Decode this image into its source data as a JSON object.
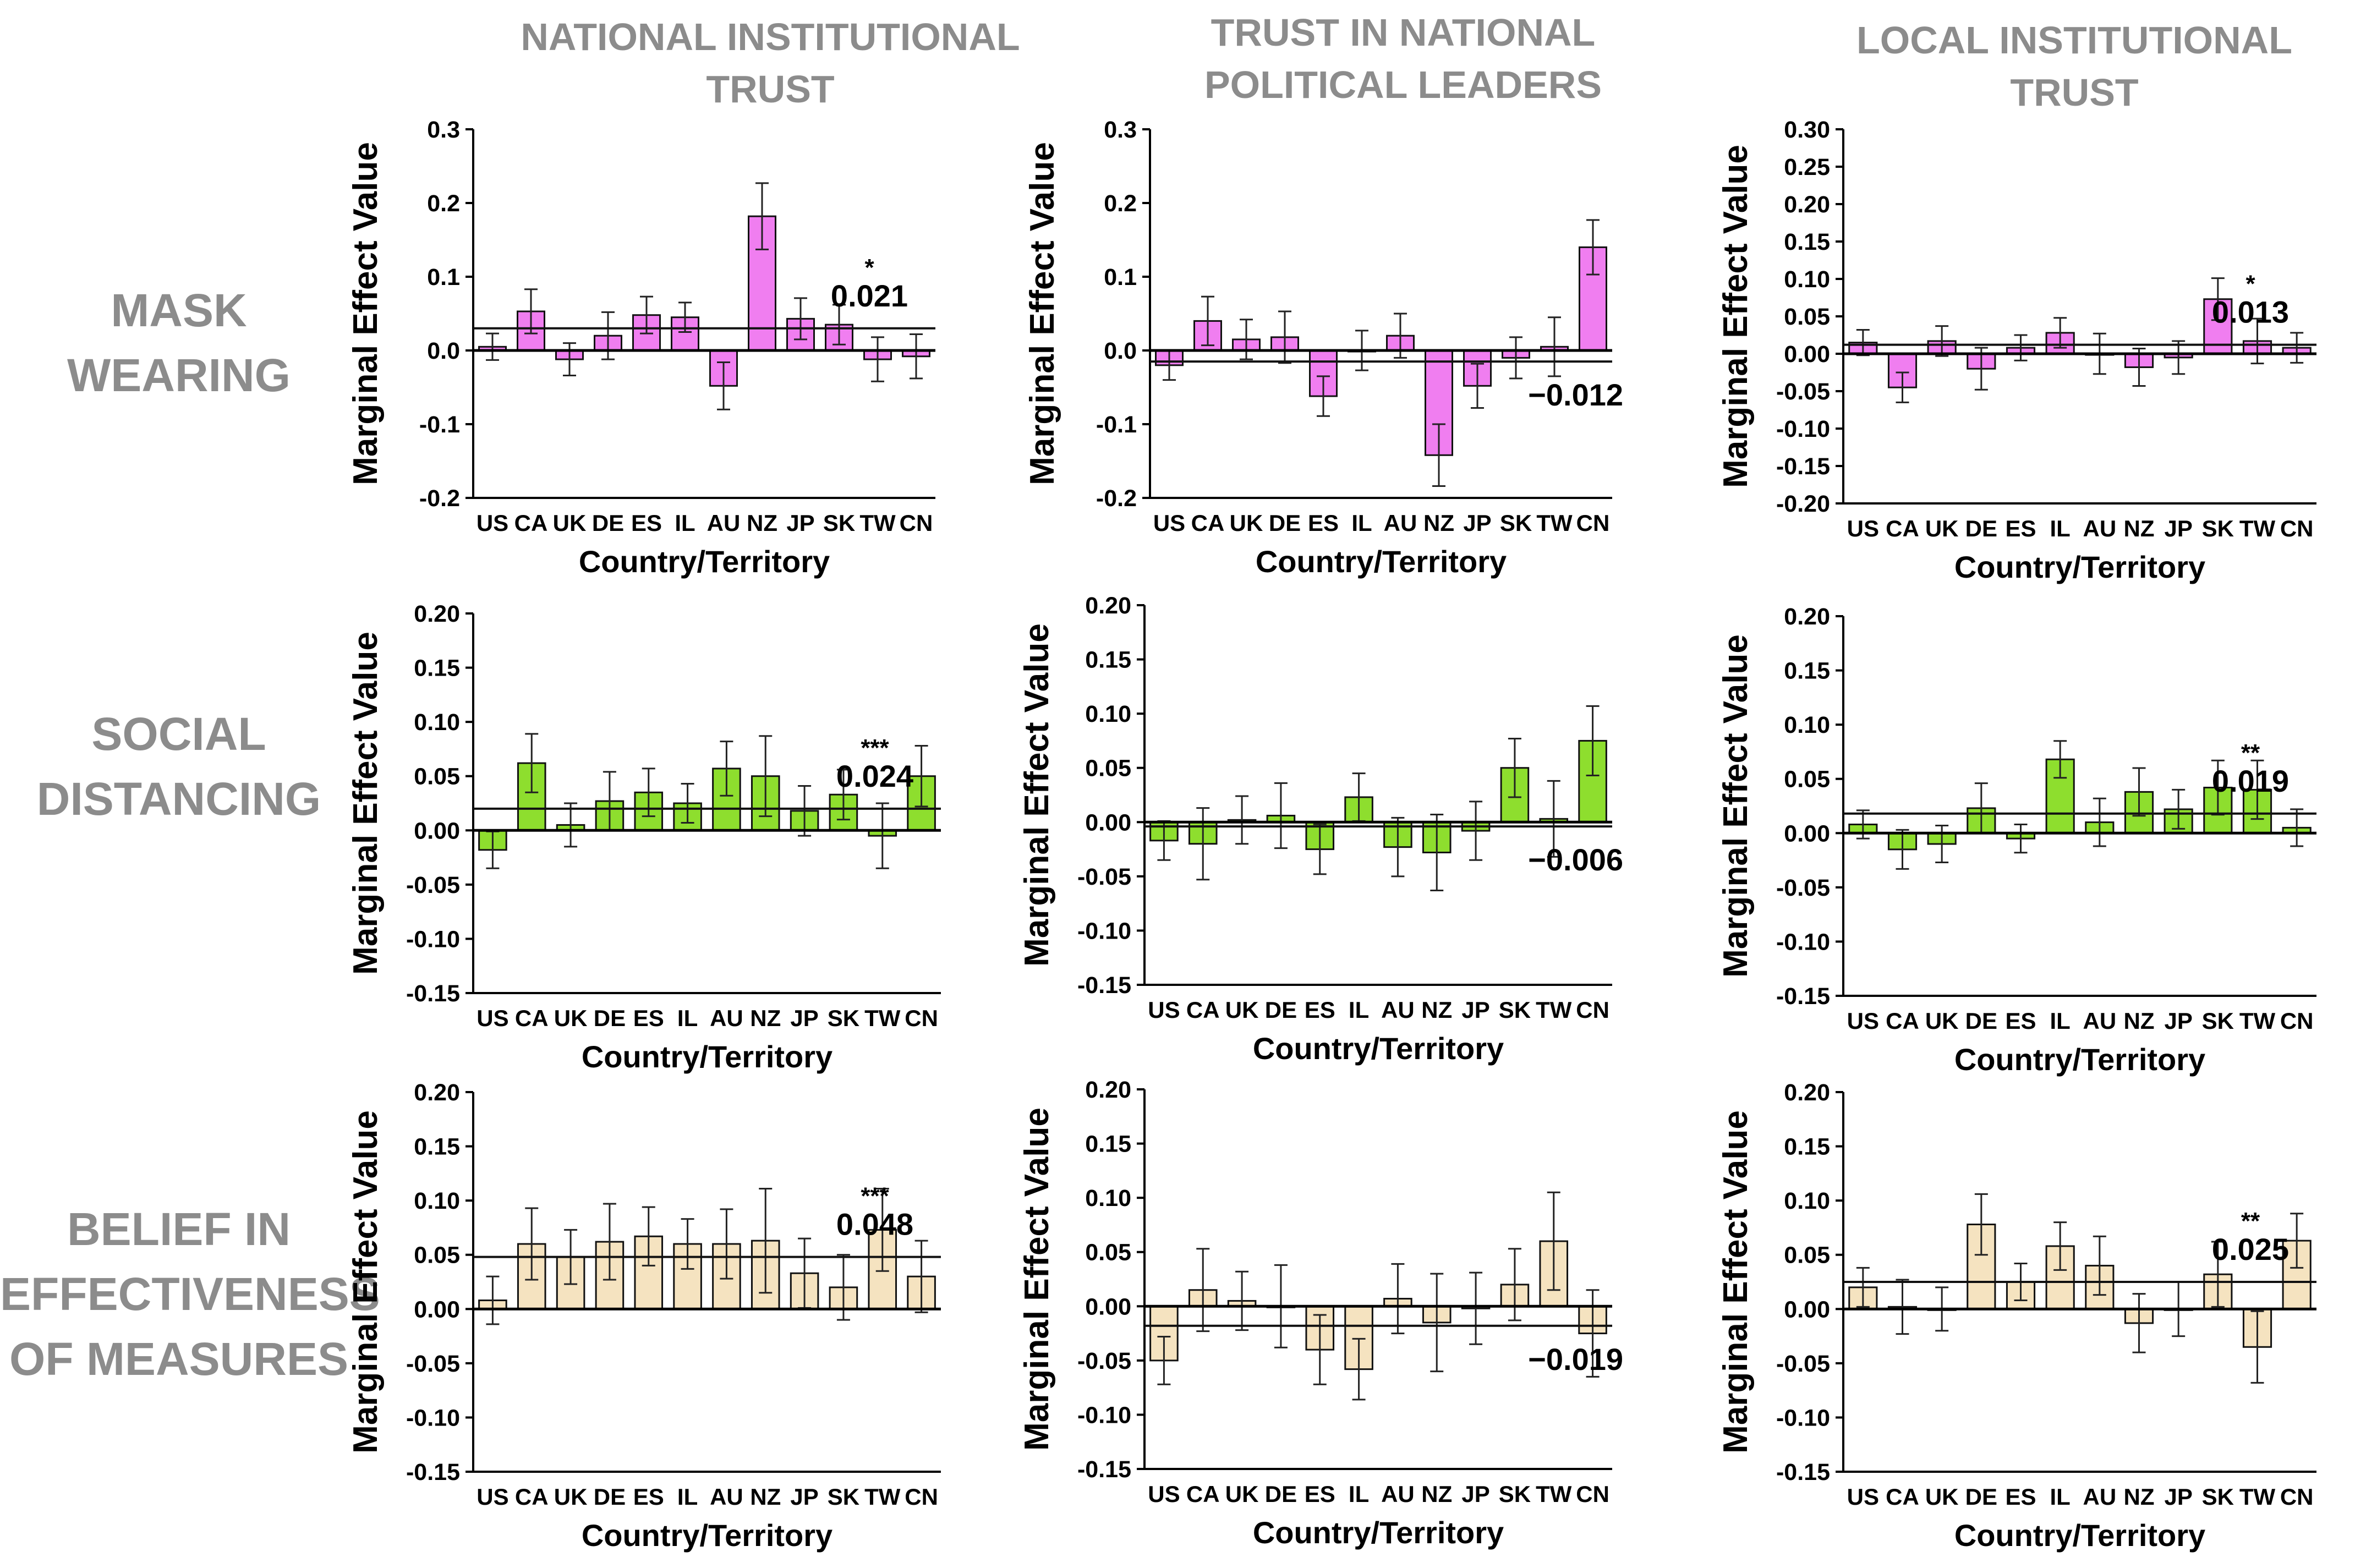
{
  "column_headers": [
    "NATIONAL INSTITUTIONAL\nTRUST",
    "TRUST IN NATIONAL\nPOLITICAL LEADERS",
    "LOCAL INSTITUTIONAL\nTRUST"
  ],
  "row_labels": [
    "MASK\nWEARING",
    "SOCIAL\nDISTANCING",
    "BELIEF IN\nEFFECTIVENESS\nOF MEASURES"
  ],
  "colors": {
    "mask": "#f07ef0",
    "social": "#8ede2e",
    "belief": "#f5e3c0",
    "header_gray": "#8c8c8c"
  },
  "chart_data": [
    {
      "type": "bar",
      "title": "",
      "row": 0,
      "col": 0,
      "xlabel": "Country/Territory",
      "ylabel": "Marginal Effect Value",
      "categories": [
        "US",
        "CA",
        "UK",
        "DE",
        "ES",
        "IL",
        "AU",
        "NZ",
        "JP",
        "SK",
        "TW",
        "CN"
      ],
      "values": [
        0.005,
        0.053,
        -0.012,
        0.02,
        0.048,
        0.045,
        -0.048,
        0.182,
        0.043,
        0.035,
        -0.012,
        -0.008
      ],
      "errors": [
        0.018,
        0.03,
        0.022,
        0.032,
        0.025,
        0.02,
        0.032,
        0.045,
        0.028,
        0.027,
        0.03,
        0.03
      ],
      "ylim": [
        -0.2,
        0.3
      ],
      "yticks": [
        "0.3",
        "0.2",
        "0.1",
        "0.0",
        "-0.1",
        "-0.2"
      ],
      "reference_line": 0.03,
      "annotation_value": "0.021",
      "significance": "*",
      "annotation_position": "upper"
    },
    {
      "type": "bar",
      "title": "",
      "row": 0,
      "col": 1,
      "xlabel": "Country/Territory",
      "ylabel": "Marginal Effect Value",
      "categories": [
        "US",
        "CA",
        "UK",
        "DE",
        "ES",
        "IL",
        "AU",
        "NZ",
        "JP",
        "SK",
        "TW",
        "CN"
      ],
      "values": [
        -0.02,
        0.04,
        0.015,
        0.018,
        -0.062,
        0.0,
        0.02,
        -0.142,
        -0.048,
        -0.01,
        0.005,
        0.14
      ],
      "errors": [
        0.02,
        0.033,
        0.027,
        0.035,
        0.027,
        0.027,
        0.03,
        0.042,
        0.03,
        0.028,
        0.04,
        0.037
      ],
      "ylim": [
        -0.2,
        0.3
      ],
      "yticks": [
        "0.3",
        "0.2",
        "0.1",
        "0.0",
        "-0.1",
        "-0.2"
      ],
      "reference_line": -0.015,
      "annotation_value": "−0.012",
      "significance": "",
      "annotation_position": "lower"
    },
    {
      "type": "bar",
      "title": "",
      "row": 0,
      "col": 2,
      "xlabel": "Country/Territory",
      "ylabel": "Marginal Effect Value",
      "categories": [
        "US",
        "CA",
        "UK",
        "DE",
        "ES",
        "IL",
        "AU",
        "NZ",
        "JP",
        "SK",
        "TW",
        "CN"
      ],
      "values": [
        0.015,
        -0.045,
        0.017,
        -0.02,
        0.008,
        0.028,
        0.0,
        -0.018,
        -0.005,
        0.073,
        0.017,
        0.008
      ],
      "errors": [
        0.017,
        0.02,
        0.02,
        0.028,
        0.017,
        0.02,
        0.027,
        0.025,
        0.022,
        0.028,
        0.03,
        0.02
      ],
      "ylim": [
        -0.2,
        0.3
      ],
      "yticks": [
        "0.30",
        "0.25",
        "0.20",
        "0.15",
        "0.10",
        "0.05",
        "0.00",
        "-0.05",
        "-0.10",
        "-0.15",
        "-0.20"
      ],
      "reference_line": 0.012,
      "annotation_value": "0.013",
      "significance": "*",
      "annotation_position": "upper"
    },
    {
      "type": "bar",
      "title": "",
      "row": 1,
      "col": 0,
      "xlabel": "Country/Territory",
      "ylabel": "Marginal Effect Value",
      "categories": [
        "US",
        "CA",
        "UK",
        "DE",
        "ES",
        "IL",
        "AU",
        "NZ",
        "JP",
        "SK",
        "TW",
        "CN"
      ],
      "values": [
        -0.018,
        0.062,
        0.005,
        0.027,
        0.035,
        0.025,
        0.057,
        0.05,
        0.018,
        0.033,
        -0.005,
        0.05
      ],
      "errors": [
        0.017,
        0.027,
        0.02,
        0.027,
        0.022,
        0.018,
        0.025,
        0.037,
        0.023,
        0.023,
        0.03,
        0.028
      ],
      "ylim": [
        -0.15,
        0.2
      ],
      "yticks": [
        "0.20",
        "0.15",
        "0.10",
        "0.05",
        "0.00",
        "-0.05",
        "-0.10",
        "-0.15"
      ],
      "reference_line": 0.02,
      "annotation_value": "0.024",
      "significance": "***",
      "annotation_position": "upper"
    },
    {
      "type": "bar",
      "title": "",
      "row": 1,
      "col": 1,
      "xlabel": "Country/Territory",
      "ylabel": "Marginal Effect Value",
      "categories": [
        "US",
        "CA",
        "UK",
        "DE",
        "ES",
        "IL",
        "AU",
        "NZ",
        "JP",
        "SK",
        "TW",
        "CN"
      ],
      "values": [
        -0.017,
        -0.02,
        0.002,
        0.006,
        -0.025,
        0.023,
        -0.023,
        -0.028,
        -0.008,
        0.05,
        0.003,
        0.075
      ],
      "errors": [
        0.018,
        0.033,
        0.022,
        0.03,
        0.023,
        0.022,
        0.027,
        0.035,
        0.027,
        0.027,
        0.035,
        0.032
      ],
      "ylim": [
        -0.15,
        0.2
      ],
      "yticks": [
        "0.20",
        "0.15",
        "0.10",
        "0.05",
        "0.00",
        "-0.05",
        "-0.10",
        "-0.15"
      ],
      "reference_line": -0.004,
      "annotation_value": "−0.006",
      "significance": "",
      "annotation_position": "lower"
    },
    {
      "type": "bar",
      "title": "",
      "row": 1,
      "col": 2,
      "xlabel": "Country/Territory",
      "ylabel": "Marginal Effect Value",
      "categories": [
        "US",
        "CA",
        "UK",
        "DE",
        "ES",
        "IL",
        "AU",
        "NZ",
        "JP",
        "SK",
        "TW",
        "CN"
      ],
      "values": [
        0.008,
        -0.015,
        -0.01,
        0.023,
        -0.005,
        0.068,
        0.01,
        0.038,
        0.022,
        0.042,
        0.04,
        0.005
      ],
      "errors": [
        0.013,
        0.018,
        0.017,
        0.023,
        0.013,
        0.017,
        0.022,
        0.022,
        0.018,
        0.025,
        0.027,
        0.017
      ],
      "ylim": [
        -0.15,
        0.2
      ],
      "yticks": [
        "0.20",
        "0.15",
        "0.10",
        "0.05",
        "0.00",
        "-0.05",
        "-0.10",
        "-0.15"
      ],
      "reference_line": 0.018,
      "annotation_value": "0.019",
      "significance": "**",
      "annotation_position": "upper"
    },
    {
      "type": "bar",
      "title": "",
      "row": 2,
      "col": 0,
      "xlabel": "Country/Territory",
      "ylabel": "Marginal Effect Value",
      "categories": [
        "US",
        "CA",
        "UK",
        "DE",
        "ES",
        "IL",
        "AU",
        "NZ",
        "JP",
        "SK",
        "TW",
        "CN"
      ],
      "values": [
        0.008,
        0.06,
        0.048,
        0.062,
        0.067,
        0.06,
        0.06,
        0.063,
        0.033,
        0.02,
        0.073,
        0.03
      ],
      "errors": [
        0.022,
        0.033,
        0.025,
        0.035,
        0.027,
        0.023,
        0.032,
        0.048,
        0.032,
        0.03,
        0.038,
        0.033
      ],
      "ylim": [
        -0.15,
        0.2
      ],
      "yticks": [
        "0.20",
        "0.15",
        "0.10",
        "0.05",
        "0.00",
        "-0.05",
        "-0.10",
        "-0.15"
      ],
      "reference_line": 0.048,
      "annotation_value": "0.048",
      "significance": "***",
      "annotation_position": "upper"
    },
    {
      "type": "bar",
      "title": "",
      "row": 2,
      "col": 1,
      "xlabel": "Country/Territory",
      "ylabel": "Marginal Effect Value",
      "categories": [
        "US",
        "CA",
        "UK",
        "DE",
        "ES",
        "IL",
        "AU",
        "NZ",
        "JP",
        "SK",
        "TW",
        "CN"
      ],
      "values": [
        -0.05,
        0.015,
        0.005,
        0.0,
        -0.04,
        -0.058,
        0.007,
        -0.015,
        -0.002,
        0.02,
        0.06,
        -0.025
      ],
      "errors": [
        0.022,
        0.038,
        0.027,
        0.038,
        0.032,
        0.028,
        0.032,
        0.045,
        0.033,
        0.033,
        0.045,
        0.04
      ],
      "ylim": [
        -0.15,
        0.2
      ],
      "yticks": [
        "0.20",
        "0.15",
        "0.10",
        "0.05",
        "0.00",
        "-0.05",
        "-0.10",
        "-0.15"
      ],
      "reference_line": -0.018,
      "annotation_value": "−0.019",
      "significance": "",
      "annotation_position": "lower"
    },
    {
      "type": "bar",
      "title": "",
      "row": 2,
      "col": 2,
      "xlabel": "Country/Territory",
      "ylabel": "Marginal Effect Value",
      "categories": [
        "US",
        "CA",
        "UK",
        "DE",
        "ES",
        "IL",
        "AU",
        "NZ",
        "JP",
        "SK",
        "TW",
        "CN"
      ],
      "values": [
        0.02,
        0.002,
        0.0,
        0.078,
        0.025,
        0.058,
        0.04,
        -0.013,
        0.0,
        0.032,
        -0.035,
        0.063
      ],
      "errors": [
        0.018,
        0.025,
        0.02,
        0.028,
        0.017,
        0.022,
        0.027,
        0.027,
        0.025,
        0.03,
        0.033,
        0.025
      ],
      "ylim": [
        -0.15,
        0.2
      ],
      "yticks": [
        "0.20",
        "0.15",
        "0.10",
        "0.05",
        "0.00",
        "-0.05",
        "-0.10",
        "-0.15"
      ],
      "reference_line": 0.025,
      "annotation_value": "0.025",
      "significance": "**",
      "annotation_position": "upper"
    }
  ]
}
